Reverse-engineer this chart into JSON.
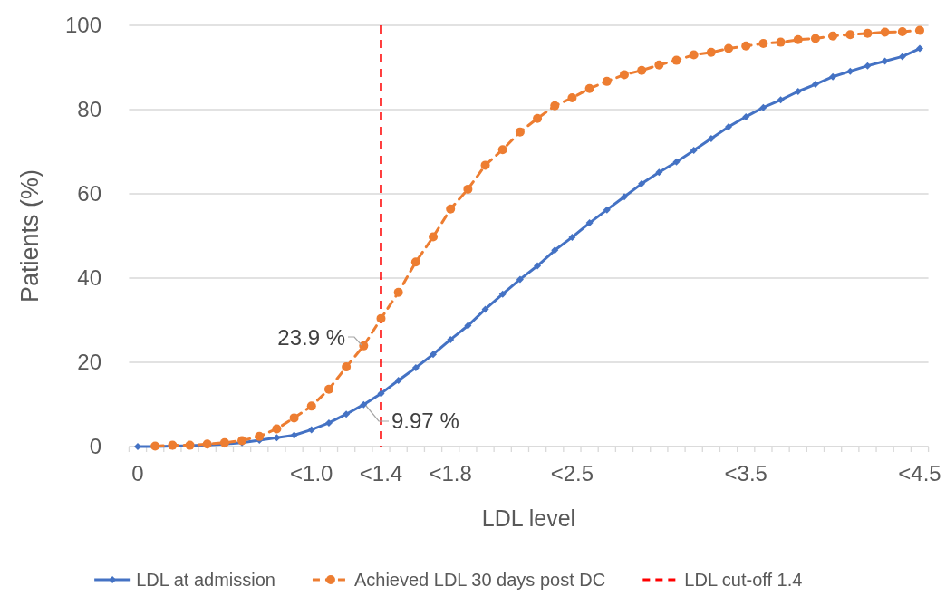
{
  "chart_data": {
    "type": "line",
    "xlabel": "LDL level",
    "ylabel": "Patients (%)",
    "categories": [
      "0",
      null,
      null,
      null,
      null,
      null,
      null,
      null,
      null,
      null,
      "<1.0",
      null,
      null,
      null,
      "<1.4",
      null,
      null,
      null,
      "<1.8",
      null,
      null,
      null,
      null,
      null,
      null,
      "<2.5",
      null,
      null,
      null,
      null,
      null,
      null,
      null,
      null,
      null,
      "<3.5",
      null,
      null,
      null,
      null,
      null,
      null,
      null,
      null,
      null,
      "<4.5"
    ],
    "ylim": [
      0,
      100
    ],
    "yticks": [
      0,
      20,
      40,
      60,
      80,
      100
    ],
    "grid": "y",
    "legend": "bottom",
    "series": [
      {
        "name": "LDL at admission",
        "color": "#4472c4",
        "marker": "diamond",
        "line_style": "solid",
        "values": [
          0,
          0,
          0.1,
          0.2,
          0.4,
          0.6,
          0.9,
          1.5,
          2.1,
          2.7,
          4.0,
          5.6,
          7.7,
          9.97,
          12.6,
          15.7,
          18.7,
          21.9,
          25.4,
          28.7,
          32.6,
          36.2,
          39.7,
          42.9,
          46.6,
          49.7,
          53.1,
          56.2,
          59.3,
          62.4,
          65.1,
          67.6,
          70.3,
          73.1,
          75.9,
          78.3,
          80.5,
          82.3,
          84.3,
          86.0,
          87.8,
          89.1,
          90.4,
          91.5,
          92.6,
          94.5
        ]
      },
      {
        "name": "Achieved LDL 30 days post DC",
        "color": "#ed7d31",
        "marker": "circle",
        "line_style": "dashed",
        "values": [
          null,
          0.1,
          0.3,
          0.3,
          0.6,
          0.9,
          1.4,
          2.4,
          4.2,
          6.8,
          9.6,
          13.6,
          18.9,
          23.9,
          30.4,
          36.6,
          43.8,
          49.8,
          56.4,
          61.1,
          66.8,
          70.5,
          74.7,
          77.9,
          80.9,
          82.8,
          85.0,
          86.7,
          88.3,
          89.3,
          90.6,
          91.7,
          93.0,
          93.6,
          94.5,
          95.1,
          95.7,
          96.0,
          96.6,
          96.9,
          97.5,
          97.8,
          98.1,
          98.4,
          98.5,
          98.8
        ]
      }
    ],
    "ref_lines": [
      {
        "axis": "x",
        "value": "<1.4",
        "label": "LDL cut-off 1.4",
        "color": "#ff0000",
        "line_style": "dashed"
      }
    ],
    "annotations": [
      "23.9 %",
      "9.97 %"
    ]
  }
}
